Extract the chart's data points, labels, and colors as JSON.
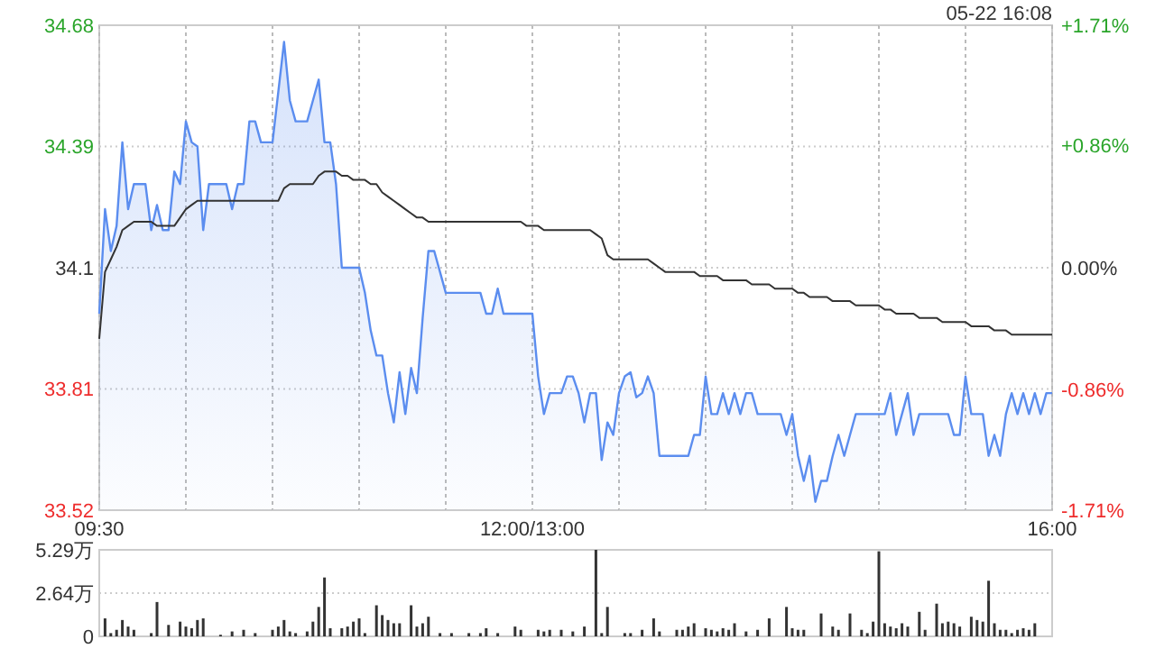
{
  "chart_data": [
    {
      "type": "line",
      "annotations": [
        "05-22 16:08"
      ],
      "categories": [
        "09:30",
        null,
        null,
        null,
        null,
        null,
        null,
        null,
        null,
        null,
        null,
        null,
        null,
        null,
        null,
        null,
        null,
        null,
        null,
        null,
        null,
        null,
        null,
        null,
        null,
        null,
        null,
        null,
        null,
        null,
        null,
        null,
        null,
        null,
        null,
        null,
        null,
        null,
        null,
        null,
        null,
        null,
        null,
        null,
        null,
        null,
        null,
        null,
        null,
        null,
        null,
        null,
        null,
        null,
        null,
        null,
        null,
        null,
        null,
        null,
        null,
        null,
        null,
        null,
        null,
        null,
        null,
        null,
        null,
        null,
        null,
        null,
        null,
        null,
        null,
        "12:00/13:00",
        null,
        null,
        null,
        null,
        null,
        null,
        null,
        null,
        null,
        null,
        null,
        null,
        null,
        null,
        null,
        null,
        null,
        null,
        null,
        null,
        null,
        null,
        null,
        null,
        null,
        null,
        null,
        null,
        null,
        null,
        null,
        null,
        null,
        null,
        null,
        null,
        null,
        null,
        null,
        null,
        null,
        null,
        null,
        null,
        null,
        null,
        null,
        null,
        null,
        null,
        null,
        null,
        null,
        null,
        null,
        null,
        null,
        null,
        null,
        null,
        null,
        null,
        null,
        null,
        null,
        null,
        null,
        null,
        null,
        null,
        null,
        null,
        null,
        null,
        null,
        null,
        null,
        null,
        null,
        null,
        null,
        null,
        null,
        null,
        null,
        null,
        null,
        null,
        null,
        "16:00"
      ],
      "ylim": [
        33.52,
        34.68
      ],
      "yticks": [
        33.52,
        33.81,
        34.1,
        34.39,
        34.68
      ],
      "y2lim": [
        -1.71,
        1.71
      ],
      "y2ticks": [
        {
          "value": -1.71,
          "label": "-1.71%"
        },
        {
          "value": -0.86,
          "label": "-0.86%"
        },
        {
          "value": 0,
          "label": "0.00%"
        },
        {
          "value": 0.86,
          "label": "+0.86%"
        },
        {
          "value": 1.71,
          "label": "+1.71%"
        }
      ],
      "grid": true,
      "series": [
        {
          "type": "area",
          "color": "#5b8def",
          "values": [
            33.99,
            34.24,
            34.14,
            34.2,
            34.4,
            34.24,
            34.3,
            34.3,
            34.3,
            34.19,
            34.25,
            34.19,
            34.19,
            34.33,
            34.3,
            34.45,
            34.4,
            34.39,
            34.19,
            34.3,
            34.3,
            34.3,
            34.3,
            34.24,
            34.3,
            34.3,
            34.45,
            34.45,
            34.4,
            34.4,
            34.4,
            34.52,
            34.64,
            34.5,
            34.45,
            34.45,
            34.45,
            34.5,
            34.55,
            34.4,
            34.4,
            34.3,
            34.1,
            34.1,
            34.1,
            34.1,
            34.04,
            33.95,
            33.89,
            33.89,
            33.8,
            33.73,
            33.85,
            33.75,
            33.86,
            33.8,
            33.98,
            34.14,
            34.14,
            34.09,
            34.04,
            34.04,
            34.04,
            34.04,
            34.04,
            34.04,
            34.04,
            33.99,
            33.99,
            34.05,
            33.99,
            33.99,
            33.99,
            33.99,
            33.99,
            33.99,
            33.84,
            33.75,
            33.8,
            33.8,
            33.8,
            33.84,
            33.84,
            33.8,
            33.73,
            33.8,
            33.8,
            33.64,
            33.73,
            33.7,
            33.8,
            33.84,
            33.85,
            33.79,
            33.8,
            33.84,
            33.8,
            33.65,
            33.65,
            33.65,
            33.65,
            33.65,
            33.65,
            33.7,
            33.7,
            33.84,
            33.75,
            33.75,
            33.8,
            33.75,
            33.8,
            33.75,
            33.8,
            33.8,
            33.75,
            33.75,
            33.75,
            33.75,
            33.75,
            33.7,
            33.75,
            33.65,
            33.59,
            33.65,
            33.54,
            33.59,
            33.59,
            33.65,
            33.7,
            33.65,
            33.7,
            33.75,
            33.75,
            33.75,
            33.75,
            33.75,
            33.75,
            33.8,
            33.7,
            33.75,
            33.8,
            33.7,
            33.75,
            33.75,
            33.75,
            33.75,
            33.75,
            33.75,
            33.7,
            33.7,
            33.84,
            33.75,
            33.75,
            33.75,
            33.65,
            33.7,
            33.65,
            33.75,
            33.8,
            33.75,
            33.8,
            33.75,
            33.8,
            33.75,
            33.8,
            33.8
          ]
        },
        {
          "type": "line",
          "color": "#333333",
          "values": [
            33.93,
            34.09,
            34.12,
            34.15,
            34.19,
            34.2,
            34.21,
            34.21,
            34.21,
            34.21,
            34.2,
            34.2,
            34.2,
            34.2,
            34.22,
            34.24,
            34.25,
            34.26,
            34.26,
            34.26,
            34.26,
            34.26,
            34.26,
            34.26,
            34.26,
            34.26,
            34.26,
            34.26,
            34.26,
            34.26,
            34.26,
            34.26,
            34.29,
            34.3,
            34.3,
            34.3,
            34.3,
            34.3,
            34.32,
            34.33,
            34.33,
            34.33,
            34.32,
            34.32,
            34.31,
            34.31,
            34.31,
            34.3,
            34.3,
            34.28,
            34.27,
            34.26,
            34.25,
            34.24,
            34.23,
            34.22,
            34.22,
            34.21,
            34.21,
            34.21,
            34.21,
            34.21,
            34.21,
            34.21,
            34.21,
            34.21,
            34.21,
            34.21,
            34.21,
            34.21,
            34.21,
            34.21,
            34.21,
            34.21,
            34.2,
            34.2,
            34.2,
            34.19,
            34.19,
            34.19,
            34.19,
            34.19,
            34.19,
            34.19,
            34.19,
            34.19,
            34.18,
            34.17,
            34.13,
            34.12,
            34.12,
            34.12,
            34.12,
            34.12,
            34.12,
            34.12,
            34.11,
            34.1,
            34.09,
            34.09,
            34.09,
            34.09,
            34.09,
            34.09,
            34.08,
            34.08,
            34.08,
            34.08,
            34.07,
            34.07,
            34.07,
            34.07,
            34.07,
            34.06,
            34.06,
            34.06,
            34.06,
            34.05,
            34.05,
            34.05,
            34.05,
            34.04,
            34.04,
            34.03,
            34.03,
            34.03,
            34.03,
            34.02,
            34.02,
            34.02,
            34.02,
            34.01,
            34.01,
            34.01,
            34.01,
            34.01,
            34,
            34,
            33.99,
            33.99,
            33.99,
            33.99,
            33.98,
            33.98,
            33.98,
            33.98,
            33.97,
            33.97,
            33.97,
            33.97,
            33.97,
            33.96,
            33.96,
            33.96,
            33.96,
            33.95,
            33.95,
            33.95,
            33.94,
            33.94,
            33.94,
            33.94,
            33.94,
            33.94,
            33.94,
            33.94
          ]
        }
      ]
    },
    {
      "type": "bar",
      "categories": [
        null,
        null,
        null,
        null,
        null,
        null,
        null,
        null,
        null,
        null,
        null,
        null,
        null,
        null,
        null,
        null,
        null,
        null,
        null,
        null,
        null,
        null,
        null,
        null,
        null,
        null,
        null,
        null,
        null,
        null,
        null,
        null,
        null,
        null,
        null,
        null,
        null,
        null,
        null,
        null,
        null,
        null,
        null,
        null,
        null,
        null,
        null,
        null,
        null,
        null,
        null,
        null,
        null,
        null,
        null,
        null,
        null,
        null,
        null,
        null,
        null,
        null,
        null,
        null,
        null,
        null,
        null,
        null,
        null,
        null,
        null,
        null,
        null,
        null,
        null,
        null,
        null,
        null,
        null,
        null,
        null,
        null,
        null,
        null,
        null,
        null,
        null,
        null,
        null,
        null,
        null,
        null,
        null,
        null,
        null,
        null,
        null,
        null,
        null,
        null,
        null,
        null,
        null,
        null,
        null,
        null,
        null,
        null,
        null,
        null,
        null,
        null,
        null,
        null,
        null,
        null,
        null,
        null,
        null,
        null,
        null,
        null,
        null,
        null,
        null,
        null,
        null,
        null,
        null,
        null,
        null,
        null,
        null,
        null,
        null,
        null,
        null,
        null,
        null,
        null,
        null,
        null,
        null,
        null,
        null,
        null,
        null,
        null,
        null,
        null,
        null,
        null,
        null,
        null,
        null,
        null,
        null,
        null,
        null,
        null,
        null,
        null,
        null,
        null,
        null,
        null
      ],
      "ylim": [
        0,
        5.29
      ],
      "yticks": [
        0,
        {
          "value": 2.64,
          "label": "2.64万"
        },
        {
          "value": 5.29,
          "label": "5.29万"
        }
      ],
      "grid": "y",
      "tick_labels": "y",
      "series": [
        {
          "color": "#333333",
          "values": [
            null,
            1.1,
            0.2,
            0.4,
            1,
            0.6,
            0.4,
            null,
            null,
            0.2,
            2.1,
            null,
            0.7,
            null,
            0.9,
            0.6,
            0.5,
            1,
            1.1,
            null,
            null,
            0.1,
            null,
            0.3,
            null,
            0.4,
            null,
            0.2,
            null,
            null,
            0.4,
            0.6,
            1,
            0.3,
            0.2,
            null,
            0.3,
            0.9,
            1.8,
            3.6,
            0.5,
            null,
            0.5,
            0.6,
            0.9,
            1.1,
            0.2,
            null,
            1.9,
            1.3,
            1,
            0.8,
            0.8,
            null,
            1.9,
            0.6,
            0.8,
            1.2,
            null,
            0.2,
            null,
            0.2,
            null,
            null,
            0.2,
            null,
            0.2,
            0.5,
            null,
            0.2,
            null,
            null,
            0.6,
            0.4,
            null,
            null,
            0.4,
            0.3,
            0.4,
            null,
            0.4,
            null,
            0.3,
            null,
            0.6,
            null,
            5.29,
            0.2,
            1.8,
            null,
            null,
            0.2,
            0.2,
            null,
            0.4,
            null,
            1.1,
            0.3,
            null,
            null,
            0.4,
            0.4,
            0.6,
            0.8,
            null,
            0.5,
            0.4,
            0.3,
            0.5,
            0.4,
            0.8,
            null,
            0.3,
            null,
            0.4,
            null,
            1.1,
            null,
            null,
            1.8,
            0.5,
            0.4,
            0.4,
            null,
            null,
            1.4,
            null,
            0.6,
            0.4,
            null,
            1.4,
            null,
            0.4,
            0.2,
            0.9,
            5.2,
            0.8,
            0.6,
            0.5,
            0.8,
            0.6,
            null,
            1.5,
            0.4,
            null,
            2,
            0.8,
            0.9,
            0.8,
            0.6,
            null,
            1.2,
            1,
            0.9,
            3.4,
            0.8,
            0.4,
            0.4,
            0.2,
            0.4,
            0.5,
            0.4,
            0.8,
            null,
            null,
            null
          ]
        }
      ]
    }
  ]
}
